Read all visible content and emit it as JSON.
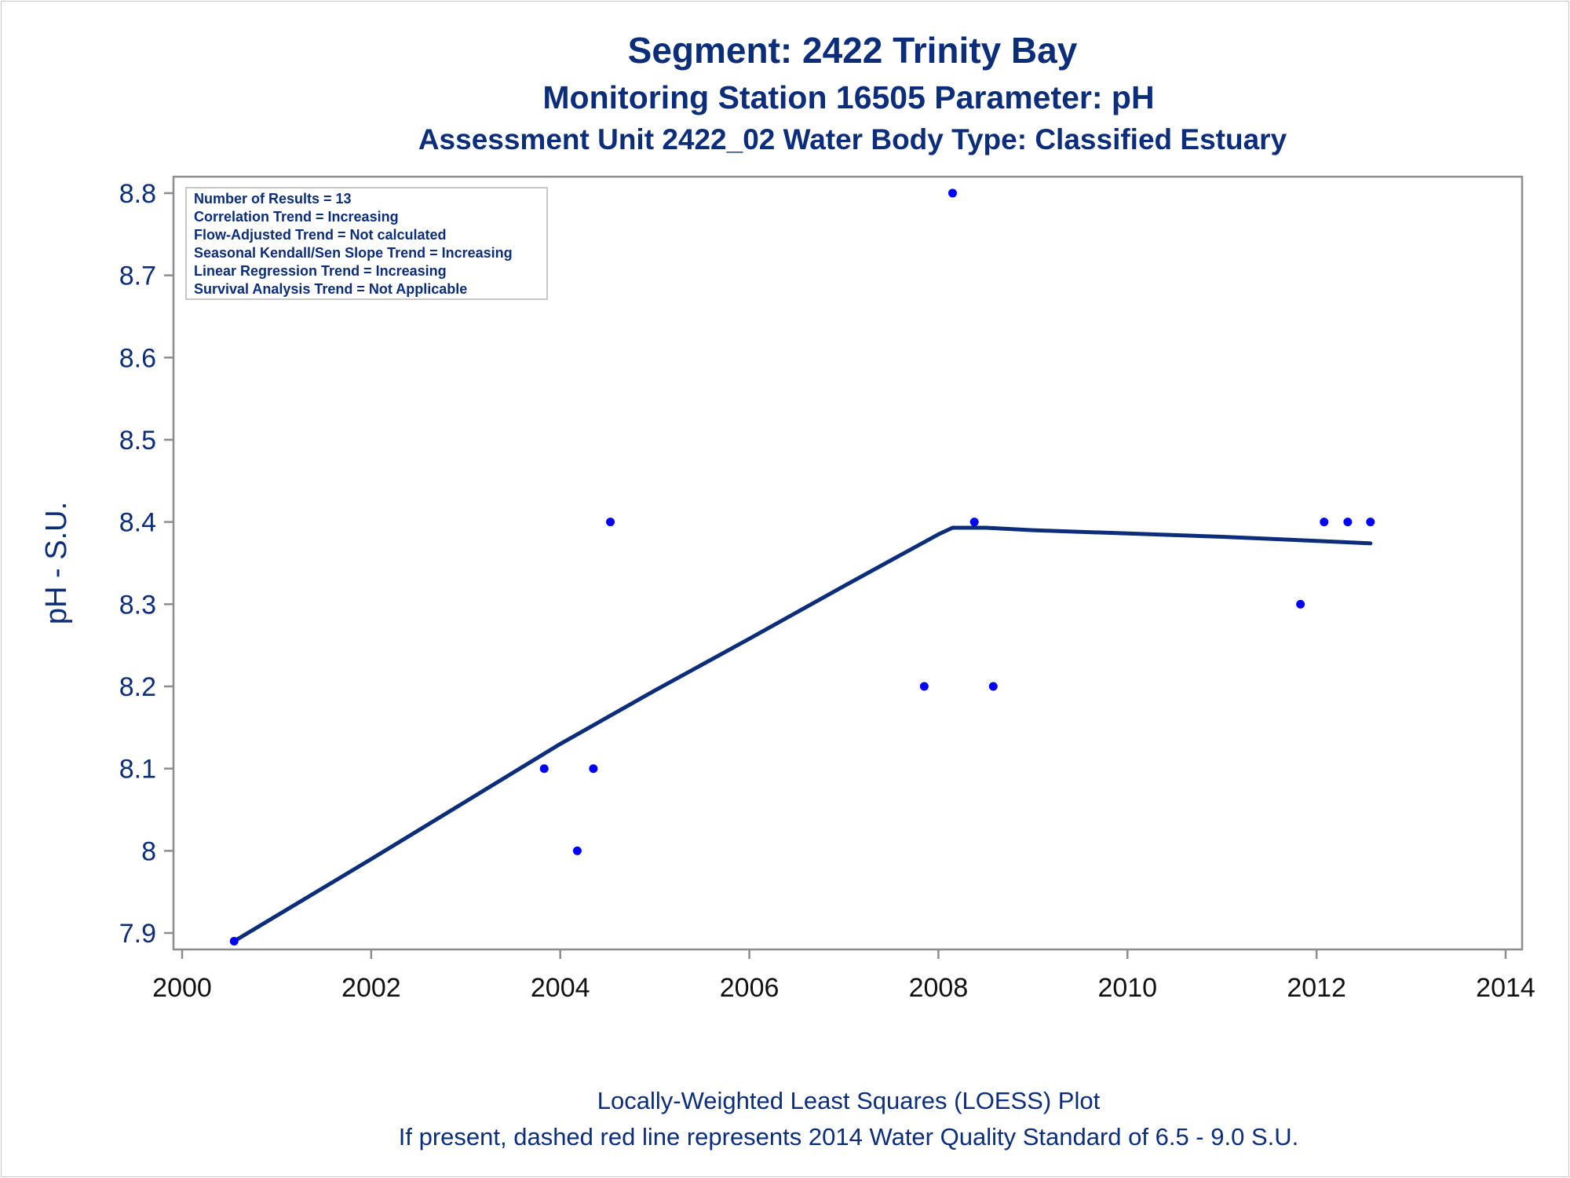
{
  "chart_data": {
    "type": "scatter",
    "title": "Segment: 2422  Trinity Bay",
    "subtitle": "Monitoring Station 16505 Parameter: pH",
    "subtitle2": "Assessment Unit 2422_02   Water Body Type: Classified Estuary",
    "xlabel": "",
    "ylabel": "pH - S.U.",
    "xlim": [
      2000,
      2014
    ],
    "ylim": [
      7.88,
      8.82
    ],
    "x_ticks": [
      2000,
      2002,
      2004,
      2006,
      2008,
      2010,
      2012,
      2014
    ],
    "y_ticks": [
      7.9,
      8,
      8.1,
      8.2,
      8.3,
      8.4,
      8.5,
      8.6,
      8.7,
      8.8
    ],
    "y_tick_labels": [
      "7.9",
      "8",
      "8.1",
      "8.2",
      "8.3",
      "8.4",
      "8.5",
      "8.6",
      "8.7",
      "8.8"
    ],
    "grid": false,
    "stats_box": {
      "placement": "top-left",
      "lines": [
        "Number of Results = 13",
        "Correlation Trend = Increasing",
        "Flow-Adjusted Trend = Not calculated",
        "Seasonal Kendall/Sen Slope Trend = Increasing",
        "Linear Regression Trend = Increasing",
        "Survival Analysis Trend = Not Applicable"
      ]
    },
    "series": [
      {
        "kind": "points",
        "color": "#0000ff",
        "x": [
          2000.55,
          2003.83,
          2004.18,
          2004.35,
          2004.53,
          2007.85,
          2008.15,
          2008.38,
          2008.58,
          2011.83,
          2012.08,
          2012.33,
          2012.57
        ],
        "y": [
          7.89,
          8.1,
          8.0,
          8.1,
          8.4,
          8.2,
          8.8,
          8.4,
          8.2,
          8.3,
          8.4,
          8.4,
          8.4
        ]
      },
      {
        "kind": "loess-line",
        "color": "#0b2d7a",
        "x": [
          2000.55,
          2002.0,
          2004.0,
          2005.0,
          2006.0,
          2007.0,
          2008.0,
          2008.15,
          2008.5,
          2009.0,
          2010.0,
          2011.0,
          2012.0,
          2012.57
        ],
        "y": [
          7.89,
          7.99,
          8.13,
          8.195,
          8.258,
          8.322,
          8.385,
          8.393,
          8.393,
          8.39,
          8.386,
          8.382,
          8.377,
          8.374
        ]
      }
    ],
    "footnotes": [
      "Locally-Weighted Least Squares (LOESS) Plot",
      "If present, dashed red line represents 2014 Water Quality Standard of 6.5 - 9.0 S.U."
    ]
  }
}
